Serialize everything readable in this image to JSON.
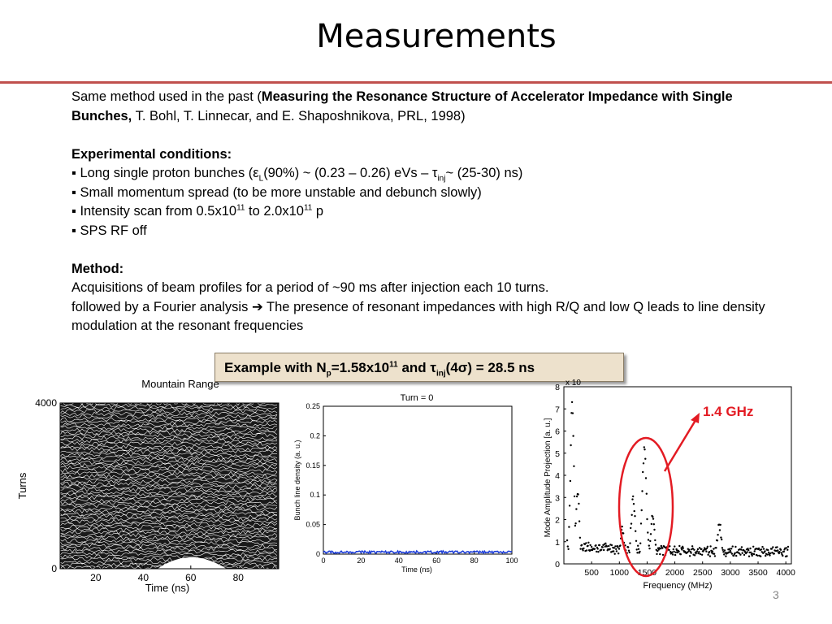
{
  "title": "Measurements",
  "intro": {
    "prefix": "Same method used in the past (",
    "paper_title": "Measuring the Resonance Structure of Accelerator Impedance with Single Bunches,",
    "suffix": " T. Bohl, T. Linnecar, and E. Shaposhnikova, PRL, 1998)"
  },
  "conditions": {
    "heading": "Experimental conditions:",
    "bullet": "▪",
    "item1_a": "Long single proton bunches (ε",
    "item1_sub1": "L",
    "item1_b": "(90%)  ~ (0.23 – 0.26) eVs – τ",
    "item1_sub2": "inj",
    "item1_c": "~ (25-30) ns)",
    "item2": "Small momentum spread (to be more unstable and debunch slowly)",
    "item3_a": "Intensity scan from 0.5x10",
    "item3_sup1": "11",
    "item3_b": " to 2.0x10",
    "item3_sup2": "11",
    "item3_c": " p",
    "item4": "SPS RF off"
  },
  "method": {
    "heading": "Method:",
    "line1": "Acquisitions of beam profiles for a period of ~90 ms after injection each 10 turns.",
    "line2_a": "followed by a Fourier analysis ",
    "arrow": "➔",
    "line2_b": " The presence of resonant impedances with high R/Q and low Q leads to line density modulation at the resonant frequencies"
  },
  "example": {
    "a": "Example with N",
    "sub1": "p",
    "b": "=1.58x10",
    "sup1": "11",
    "c": " and τ",
    "sub2": "inj",
    "d": "(4σ) = 28.5 ns"
  },
  "annotation": {
    "label": "1.4 GHz",
    "color": "#e31b23"
  },
  "page_number": "3",
  "chart_data": [
    {
      "type": "line",
      "title": "Mountain Range",
      "xlabel": "Time (ns)",
      "ylabel": "Turns",
      "x_ticks": [
        "20",
        "40",
        "60",
        "80"
      ],
      "y_ticks": [
        "0",
        "4000"
      ],
      "xlim": [
        5,
        97
      ],
      "ylim": [
        0,
        4000
      ]
    },
    {
      "type": "line",
      "title": "Turn = 0",
      "xlabel": "Time (ns)",
      "ylabel": "Bunch line density (a. u.)",
      "x_ticks": [
        "0",
        "20",
        "40",
        "60",
        "80",
        "100"
      ],
      "y_ticks": [
        "0",
        "0.05",
        "0.1",
        "0.15",
        "0.2",
        "0.25"
      ],
      "xlim": [
        0,
        100
      ],
      "ylim": [
        0,
        0.25
      ],
      "series_color": "#1f3fd8"
    },
    {
      "type": "scatter",
      "title": "",
      "xlabel": "Frequency (MHz)",
      "ylabel": "Mode Amplitude Projection [a. u.]",
      "x_ticks": [
        "500",
        "1000",
        "1500",
        "2000",
        "2500",
        "3000",
        "3500",
        "4000"
      ],
      "y_ticks": [
        "0",
        "1",
        "2",
        "3",
        "4",
        "5",
        "6",
        "7",
        "8"
      ],
      "exponent": "x 10",
      "xlim": [
        0,
        4100
      ],
      "ylim": [
        0,
        8
      ],
      "peaks": [
        {
          "x": 150,
          "y": 7.2
        },
        {
          "x": 250,
          "y": 3.2
        },
        {
          "x": 1050,
          "y": 1.5
        },
        {
          "x": 1250,
          "y": 2.9
        },
        {
          "x": 1450,
          "y": 5.1
        },
        {
          "x": 1600,
          "y": 2.2
        },
        {
          "x": 2800,
          "y": 1.8
        }
      ]
    }
  ]
}
